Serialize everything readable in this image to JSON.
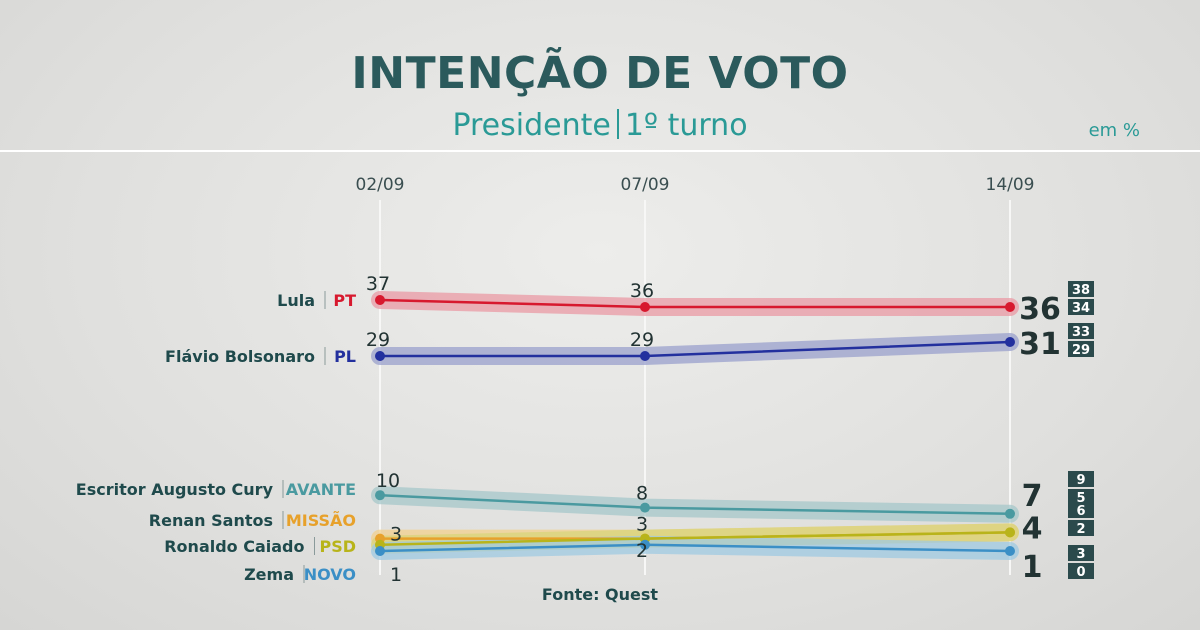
{
  "header": {
    "title": "INTENÇÃO DE VOTO",
    "subtitle_left": "Presidente",
    "subtitle_right": "1º turno",
    "unit": "em %"
  },
  "footer": {
    "source": "Fonte: Quest"
  },
  "chart_data": {
    "type": "line",
    "x": [
      "02/09",
      "07/09",
      "14/09"
    ],
    "ylim": [
      0,
      40
    ],
    "grid": "vertical-at-dates",
    "series": [
      {
        "name": "Lula",
        "party": "PT",
        "color": "#d7192e",
        "band": "#e99aa4",
        "values": [
          37,
          36,
          36
        ],
        "ci_last": [
          "38",
          "34"
        ]
      },
      {
        "name": "Flávio Bolsonaro",
        "party": "PL",
        "color": "#23309e",
        "band": "#9aa0cc",
        "values": [
          29,
          29,
          31
        ],
        "ci_last": [
          "33",
          "29"
        ]
      },
      {
        "name": "Escritor Augusto Cury",
        "party": "AVANTE",
        "color": "#4a9aa0",
        "band": "#a6c7c9",
        "values": [
          10,
          8,
          7
        ],
        "ci_last": [
          "9",
          "5"
        ]
      },
      {
        "name": "Renan Santos",
        "party": "MISSÃO",
        "color": "#e7a12b",
        "band": "#f1d08e",
        "values": [
          3,
          3,
          4
        ],
        "ci_last": [
          "6",
          "2"
        ]
      },
      {
        "name": "Ronaldo Caiado",
        "party": "PSD",
        "color": "#b8b41a",
        "band": "#d8d47a",
        "values": [
          2,
          3,
          4
        ],
        "ci_last": [
          "6",
          "2"
        ]
      },
      {
        "name": "Zema",
        "party": "NOVO",
        "color": "#3b8fc6",
        "band": "#9fc9e2",
        "values": [
          1,
          2,
          1
        ],
        "ci_last": [
          "3",
          "0"
        ]
      }
    ],
    "value_labels": [
      {
        "series": 0,
        "values": [
          "37",
          "36",
          "36"
        ]
      },
      {
        "series": 1,
        "values": [
          "29",
          "29",
          "31"
        ]
      },
      {
        "series": 2,
        "values": [
          "10",
          "8",
          "7"
        ]
      },
      {
        "series": 3,
        "values": [
          "3",
          "3",
          "4"
        ]
      },
      {
        "series": 5,
        "values": [
          "1",
          "2",
          "1"
        ]
      }
    ]
  }
}
